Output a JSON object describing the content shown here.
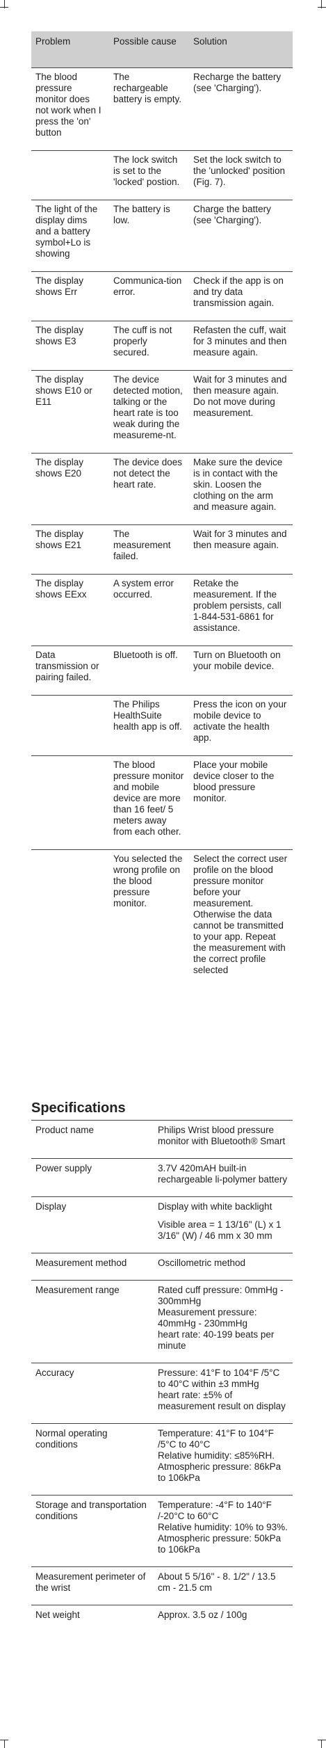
{
  "troubleshooting": {
    "header": [
      "Problem",
      "Possible cause",
      "Solution"
    ],
    "rows": [
      [
        "The blood pressure monitor does not work when I press the 'on' button",
        "The rechargeable battery is empty.",
        "Recharge the battery (see 'Charging')."
      ],
      [
        null,
        "The lock switch is set to the 'locked' postion.",
        "Set the lock switch to the 'unlocked' position (Fig. 7)."
      ],
      [
        "The light of the display dims and a battery symbol+Lo is showing",
        "The battery is low.",
        "Charge the battery (see 'Charging')."
      ],
      [
        "The display shows Err",
        "Communica-tion error.",
        "Check if the app is on and try data transmission again."
      ],
      [
        "The display shows E3",
        "The cuff is not properly secured.",
        "Refasten the cuff, wait for 3 minutes and then measure again."
      ],
      [
        "The display shows E10 or E11",
        "The device detected motion,  talking or the heart rate is too weak during the measureme-nt.",
        "Wait for 3 minutes and then measure again. Do not move during measurement."
      ],
      [
        "The display shows E20",
        "The device does not detect the heart rate.",
        "Make sure the device is in contact with the skin. Loosen the clothing on the arm and measure again."
      ],
      [
        "The display shows E21",
        "The measurement failed.",
        "Wait for 3 minutes and then measure again."
      ],
      [
        "The display shows EExx",
        "A system error occurred.",
        "Retake the measurement. If the problem persists, call 1-844-531-6861 for assistance."
      ],
      [
        "Data transmission or pairing failed.",
        "Bluetooth is off.",
        "Turn on Bluetooth on your mobile device."
      ],
      [
        null,
        "The Philips HealthSuite health app is off.",
        "Press the icon on your mobile device to activate the health app."
      ],
      [
        null,
        "The blood pressure monitor and mobile device are more than 16 feet/ 5 meters away from each other.",
        "Place your mobile device closer to the blood pressure monitor."
      ],
      [
        null,
        "You selected the wrong profile on the blood pressure monitor.",
        "Select the correct user profile on the blood pressure monitor before your measurement. Otherwise the data cannot be transmitted to your app. Repeat the measurement with the correct profile selected"
      ]
    ]
  },
  "specifications": {
    "title": "Specifications",
    "rows": [
      {
        "label": "Product name",
        "lines": [
          "Philips Wrist blood pressure monitor with Bluetooth® Smart"
        ]
      },
      {
        "label": "Power supply",
        "lines": [
          "3.7V 420mAH built-in rechargeable li-polymer battery"
        ]
      },
      {
        "label": "Display",
        "lines": [
          "Display with white backlight",
          "Visible area = 1 13/16\" (L) x 1 3/16\" (W) / 46 mm x 30 mm"
        ]
      },
      {
        "label": "Measurement method",
        "lines": [
          "Oscillometric method"
        ]
      },
      {
        "label": "Measurement range",
        "lines": [
          "Rated cuff pressure: 0mmHg - 300mmHg",
          "Measurement pressure: 40mmHg - 230mmHg",
          "heart rate: 40-199 beats per minute"
        ]
      },
      {
        "label": "Accuracy",
        "lines": [
          "Pressure: 41°F to 104°F /5°C to 40°C within ±3 mmHg",
          "heart rate: ±5% of measurement result on display"
        ]
      },
      {
        "label": "Normal operating conditions",
        "lines": [
          "Temperature: 41°F to 104°F /5°C to 40°C",
          "Relative humidity: ≤85%RH.",
          "Atmospheric pressure: 86kPa to 106kPa"
        ]
      },
      {
        "label": "Storage and transportation conditions",
        "lines": [
          "Temperature: -4°F to 140°F /-20°C to 60°C",
          "Relative humidity: 10% to 93%.",
          "Atmospheric pressure: 50kPa to 106kPa"
        ]
      },
      {
        "label": "Measurement perimeter of the wrist",
        "lines": [
          "About 5 5/16\" - 8. 1/2\" / 13.5 cm - 21.5 cm"
        ]
      },
      {
        "label": "Net weight",
        "lines": [
          "Approx. 3.5 oz / 100g"
        ]
      }
    ]
  }
}
